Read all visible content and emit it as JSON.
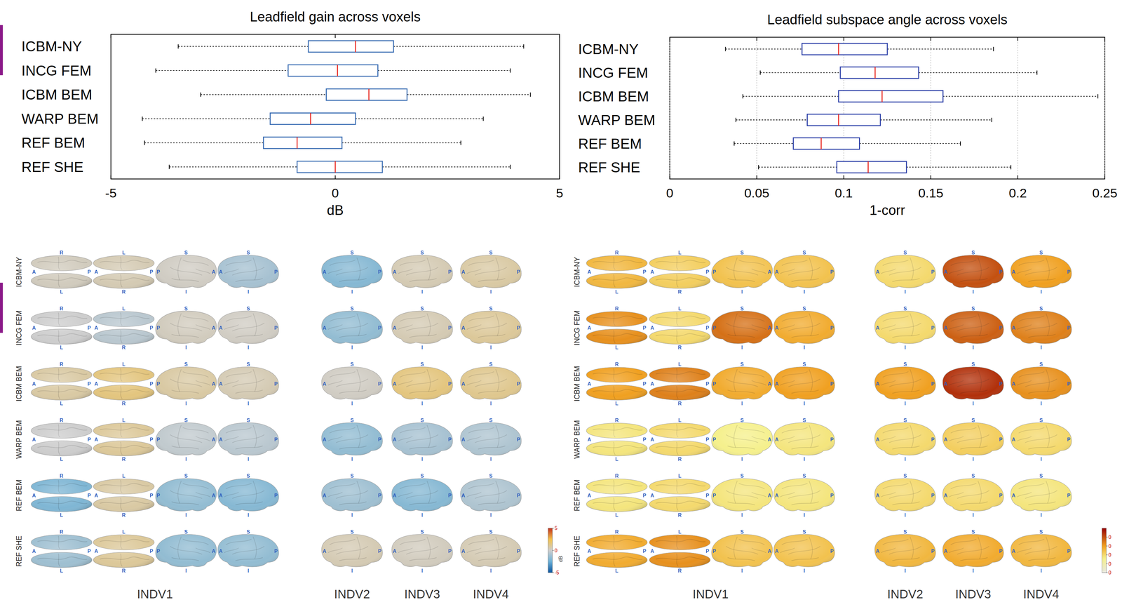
{
  "chart_data": [
    {
      "type": "box",
      "title": "Leadfield gain across voxels",
      "x_label": "dB",
      "categories": [
        "ICBM-NY",
        "INCG FEM",
        "ICBM BEM",
        "WARP BEM",
        "REF BEM",
        "REF SHE"
      ],
      "boxes": [
        {
          "whisker_low": -3.5,
          "q1": -0.6,
          "median": 0.45,
          "q3": 1.3,
          "whisker_high": 4.2
        },
        {
          "whisker_low": -4.0,
          "q1": -1.05,
          "median": 0.05,
          "q3": 0.95,
          "whisker_high": 3.9
        },
        {
          "whisker_low": -3.0,
          "q1": -0.2,
          "median": 0.75,
          "q3": 1.6,
          "whisker_high": 4.35
        },
        {
          "whisker_low": -4.3,
          "q1": -1.45,
          "median": -0.55,
          "q3": 0.45,
          "whisker_high": 3.3
        },
        {
          "whisker_low": -4.25,
          "q1": -1.6,
          "median": -0.85,
          "q3": 0.15,
          "whisker_high": 2.8
        },
        {
          "whisker_low": -3.7,
          "q1": -0.85,
          "median": 0.0,
          "q3": 1.05,
          "whisker_high": 3.9
        }
      ],
      "xlim": [
        -5,
        5
      ],
      "xticks": [
        -5,
        0,
        5
      ],
      "grid": false,
      "color": "#3a6db3"
    },
    {
      "type": "box",
      "title": "Leadfield subspace angle across voxels",
      "x_label": "1-corr",
      "categories": [
        "ICBM-NY",
        "INCG FEM",
        "ICBM BEM",
        "WARP BEM",
        "REF BEM",
        "REF SHE"
      ],
      "boxes": [
        {
          "whisker_low": 0.032,
          "q1": 0.076,
          "median": 0.097,
          "q3": 0.125,
          "whisker_high": 0.186
        },
        {
          "whisker_low": 0.052,
          "q1": 0.098,
          "median": 0.118,
          "q3": 0.143,
          "whisker_high": 0.211
        },
        {
          "whisker_low": 0.042,
          "q1": 0.097,
          "median": 0.122,
          "q3": 0.157,
          "whisker_high": 0.246
        },
        {
          "whisker_low": 0.038,
          "q1": 0.079,
          "median": 0.097,
          "q3": 0.121,
          "whisker_high": 0.185
        },
        {
          "whisker_low": 0.037,
          "q1": 0.071,
          "median": 0.087,
          "q3": 0.109,
          "whisker_high": 0.167
        },
        {
          "whisker_low": 0.051,
          "q1": 0.096,
          "median": 0.114,
          "q3": 0.136,
          "whisker_high": 0.196
        }
      ],
      "xlim": [
        0,
        0.25
      ],
      "xticks": [
        0,
        0.05,
        0.1,
        0.15,
        0.2,
        0.25
      ],
      "grid": true,
      "color": "#2b3fa8"
    },
    {
      "type": "brain_map",
      "row_labels": [
        "ICBM-NY",
        "INCG FEM",
        "ICBM BEM",
        "WARP BEM",
        "REF BEM",
        "REF SHE"
      ],
      "column_groups": [
        {
          "label": "INDV1",
          "views": [
            {
              "top": "R",
              "bottom": "L",
              "left": "A",
              "right": "P"
            },
            {
              "top": "L",
              "bottom": "R",
              "left": "A",
              "right": "P"
            },
            {
              "top": "S",
              "bottom": "I",
              "left": "P",
              "right": "A"
            },
            {
              "top": "S",
              "bottom": "I",
              "left": "A",
              "right": "P"
            }
          ]
        },
        {
          "label": "INDV2",
          "views": [
            {
              "top": "S",
              "bottom": "I",
              "left": "A",
              "right": "P"
            }
          ]
        },
        {
          "label": "INDV3",
          "views": [
            {
              "top": "S",
              "bottom": "I",
              "left": "A",
              "right": "P"
            }
          ]
        },
        {
          "label": "INDV4",
          "views": [
            {
              "top": "S",
              "bottom": "I",
              "left": "A",
              "right": "P"
            }
          ]
        }
      ],
      "values": [
        [
          0.3,
          0.5,
          0.2,
          -1.0,
          -1.8,
          0.5,
          0.8
        ],
        [
          0.0,
          -0.5,
          0.3,
          0.2,
          -1.5,
          0.5,
          1.0
        ],
        [
          0.8,
          1.5,
          0.8,
          0.5,
          0.2,
          1.5,
          1.2
        ],
        [
          0.0,
          1.0,
          -0.3,
          -0.5,
          -1.5,
          -1.0,
          -0.8
        ],
        [
          -2.0,
          0.8,
          -1.5,
          -1.8,
          -1.2,
          -1.8,
          -0.8
        ],
        [
          -1.2,
          1.0,
          -1.5,
          -1.5,
          0.5,
          0.3,
          0.5
        ]
      ],
      "colorbar": {
        "range": [
          -5,
          5
        ],
        "ticks": [
          -5,
          0,
          5
        ],
        "label": "dB"
      }
    },
    {
      "type": "brain_map",
      "row_labels": [
        "ICBM-NY",
        "INCG FEM",
        "ICBM BEM",
        "WARP BEM",
        "REF BEM",
        "REF SHE"
      ],
      "column_groups": [
        {
          "label": "INDV1",
          "views": [
            {
              "top": "R",
              "bottom": "L",
              "left": "A",
              "right": "P"
            },
            {
              "top": "L",
              "bottom": "R",
              "left": "A",
              "right": "P"
            },
            {
              "top": "S",
              "bottom": "I",
              "left": "P",
              "right": "A"
            },
            {
              "top": "S",
              "bottom": "I",
              "left": "A",
              "right": "P"
            }
          ]
        },
        {
          "label": "INDV2",
          "views": [
            {
              "top": "S",
              "bottom": "I",
              "left": "A",
              "right": "P"
            }
          ]
        },
        {
          "label": "INDV3",
          "views": [
            {
              "top": "S",
              "bottom": "I",
              "left": "A",
              "right": "P"
            }
          ]
        },
        {
          "label": "INDV4",
          "views": [
            {
              "top": "S",
              "bottom": "I",
              "left": "A",
              "right": "P"
            }
          ]
        }
      ],
      "values": [
        [
          0.13,
          0.11,
          0.12,
          0.12,
          0.1,
          0.2,
          0.15
        ],
        [
          0.16,
          0.1,
          0.18,
          0.14,
          0.1,
          0.19,
          0.17
        ],
        [
          0.15,
          0.17,
          0.14,
          0.15,
          0.15,
          0.22,
          0.16
        ],
        [
          0.09,
          0.1,
          0.08,
          0.09,
          0.1,
          0.11,
          0.1
        ],
        [
          0.09,
          0.1,
          0.09,
          0.09,
          0.1,
          0.1,
          0.09
        ],
        [
          0.14,
          0.16,
          0.12,
          0.12,
          0.13,
          0.14,
          0.13
        ]
      ],
      "colorbar": {
        "range": [
          0,
          0.25
        ],
        "ticks": [
          {
            "value": 0,
            "label": "0"
          },
          {
            "value": 0.05,
            "label": "0"
          },
          {
            "value": 0.1,
            "label": "0"
          },
          {
            "value": 0.15,
            "label": "0"
          },
          {
            "value": 0.2,
            "label": "0"
          }
        ]
      }
    }
  ]
}
